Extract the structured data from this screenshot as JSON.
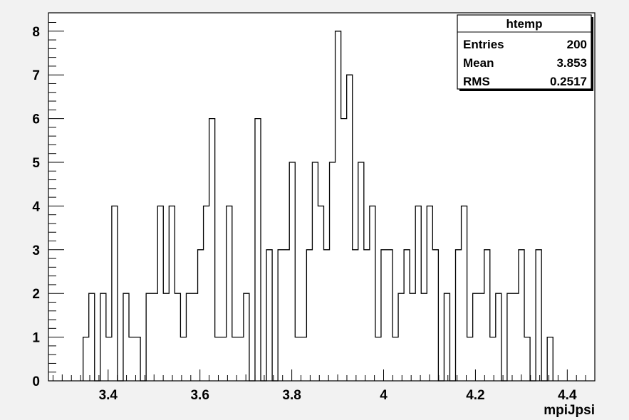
{
  "chart_data": {
    "type": "bar",
    "histogram": true,
    "xlabel": "mpiJpsi",
    "ylabel": "",
    "xlim": [
      3.27,
      4.46
    ],
    "ylim": [
      0,
      8.42
    ],
    "bin_start": 3.3455,
    "bin_width": 0.01248,
    "bin_values": [
      1,
      2,
      0,
      2,
      1,
      4,
      0,
      2,
      1,
      1,
      0,
      2,
      2,
      4,
      2,
      4,
      2,
      1,
      2,
      2,
      3,
      4,
      6,
      1,
      1,
      4,
      1,
      1,
      2,
      0,
      6,
      0,
      3,
      0,
      3,
      3,
      5,
      1,
      1,
      3,
      5,
      4,
      3,
      5,
      8,
      6,
      7,
      3,
      5,
      3,
      4,
      1,
      3,
      3,
      1,
      2,
      3,
      2,
      4,
      2,
      4,
      3,
      0,
      2,
      0,
      3,
      4,
      1,
      2,
      2,
      3,
      1,
      2,
      0,
      2,
      2,
      3,
      1,
      0,
      3,
      0,
      1
    ],
    "xticks": [
      3.4,
      3.6,
      3.8,
      4.0,
      4.2,
      4.4
    ],
    "xtick_labels": [
      "3.4",
      "3.6",
      "3.8",
      "4",
      "4.2",
      "4.4"
    ],
    "yticks": [
      0,
      1,
      2,
      3,
      4,
      5,
      6,
      7,
      8
    ],
    "ytick_labels": [
      "0",
      "1",
      "2",
      "3",
      "4",
      "5",
      "6",
      "7",
      "8"
    ],
    "grid": false
  },
  "stats_box": {
    "title": "htemp",
    "rows": [
      {
        "label": "Entries",
        "value": "200"
      },
      {
        "label": "Mean",
        "value": "3.853"
      },
      {
        "label": "RMS",
        "value": "0.2517"
      }
    ]
  },
  "colors": {
    "background": "#ffffff",
    "frame_fill": "#ffffff",
    "line": "#000000",
    "outer": "#f2f2f2"
  }
}
